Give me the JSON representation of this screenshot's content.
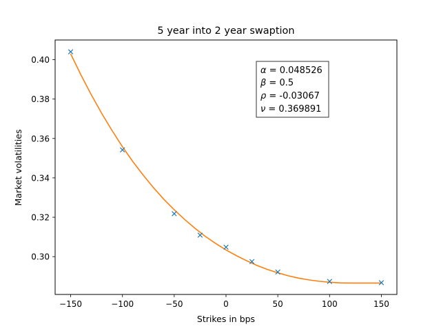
{
  "chart_data": {
    "type": "line",
    "title": "5 year into 2 year swaption",
    "xlabel": "Strikes in bps",
    "ylabel": "Market volatilities",
    "xlim": [
      -165,
      165
    ],
    "ylim": [
      0.2808,
      0.41
    ],
    "xticks": [
      -150,
      -100,
      -50,
      0,
      50,
      100,
      150
    ],
    "xtick_labels": [
      "−150",
      "−100",
      "−50",
      "0",
      "50",
      "100",
      "150"
    ],
    "yticks": [
      0.3,
      0.32,
      0.34,
      0.36,
      0.38,
      0.4
    ],
    "ytick_labels": [
      "0.30",
      "0.32",
      "0.34",
      "0.36",
      "0.38",
      "0.40"
    ],
    "grid": false,
    "legend": null,
    "series": [
      {
        "kind": "markers",
        "marker": "x",
        "color": "#1f77b4",
        "x": [
          -150,
          -100,
          -50,
          -25,
          0,
          25,
          50,
          100,
          150
        ],
        "y": [
          0.404,
          0.3542,
          0.3218,
          0.3109,
          0.3048,
          0.2975,
          0.2922,
          0.2874,
          0.2868
        ]
      },
      {
        "kind": "line",
        "color": "#ff7f0e",
        "x": [
          -150,
          -140,
          -130,
          -120,
          -110,
          -100,
          -90,
          -80,
          -70,
          -60,
          -50,
          -40,
          -30,
          -20,
          -10,
          0,
          10,
          20,
          30,
          40,
          50,
          60,
          70,
          80,
          90,
          100,
          110,
          120,
          130,
          140,
          150
        ],
        "y": [
          0.403,
          0.3922,
          0.3821,
          0.3727,
          0.364,
          0.3558,
          0.3483,
          0.3414,
          0.335,
          0.3291,
          0.3238,
          0.3189,
          0.3144,
          0.3103,
          0.3067,
          0.3034,
          0.3005,
          0.2979,
          0.2955,
          0.2935,
          0.2918,
          0.2903,
          0.2891,
          0.2882,
          0.2875,
          0.287,
          0.2867,
          0.2866,
          0.2866,
          0.2866,
          0.2866
        ]
      }
    ],
    "annotation": {
      "lines": [
        {
          "symbol": "α",
          "text": " = 0.048526"
        },
        {
          "symbol": "β",
          "text": " = 0.5"
        },
        {
          "symbol": "ρ",
          "text": " = -0.03067"
        },
        {
          "symbol": "ν",
          "text": " = 0.369891"
        }
      ]
    }
  }
}
